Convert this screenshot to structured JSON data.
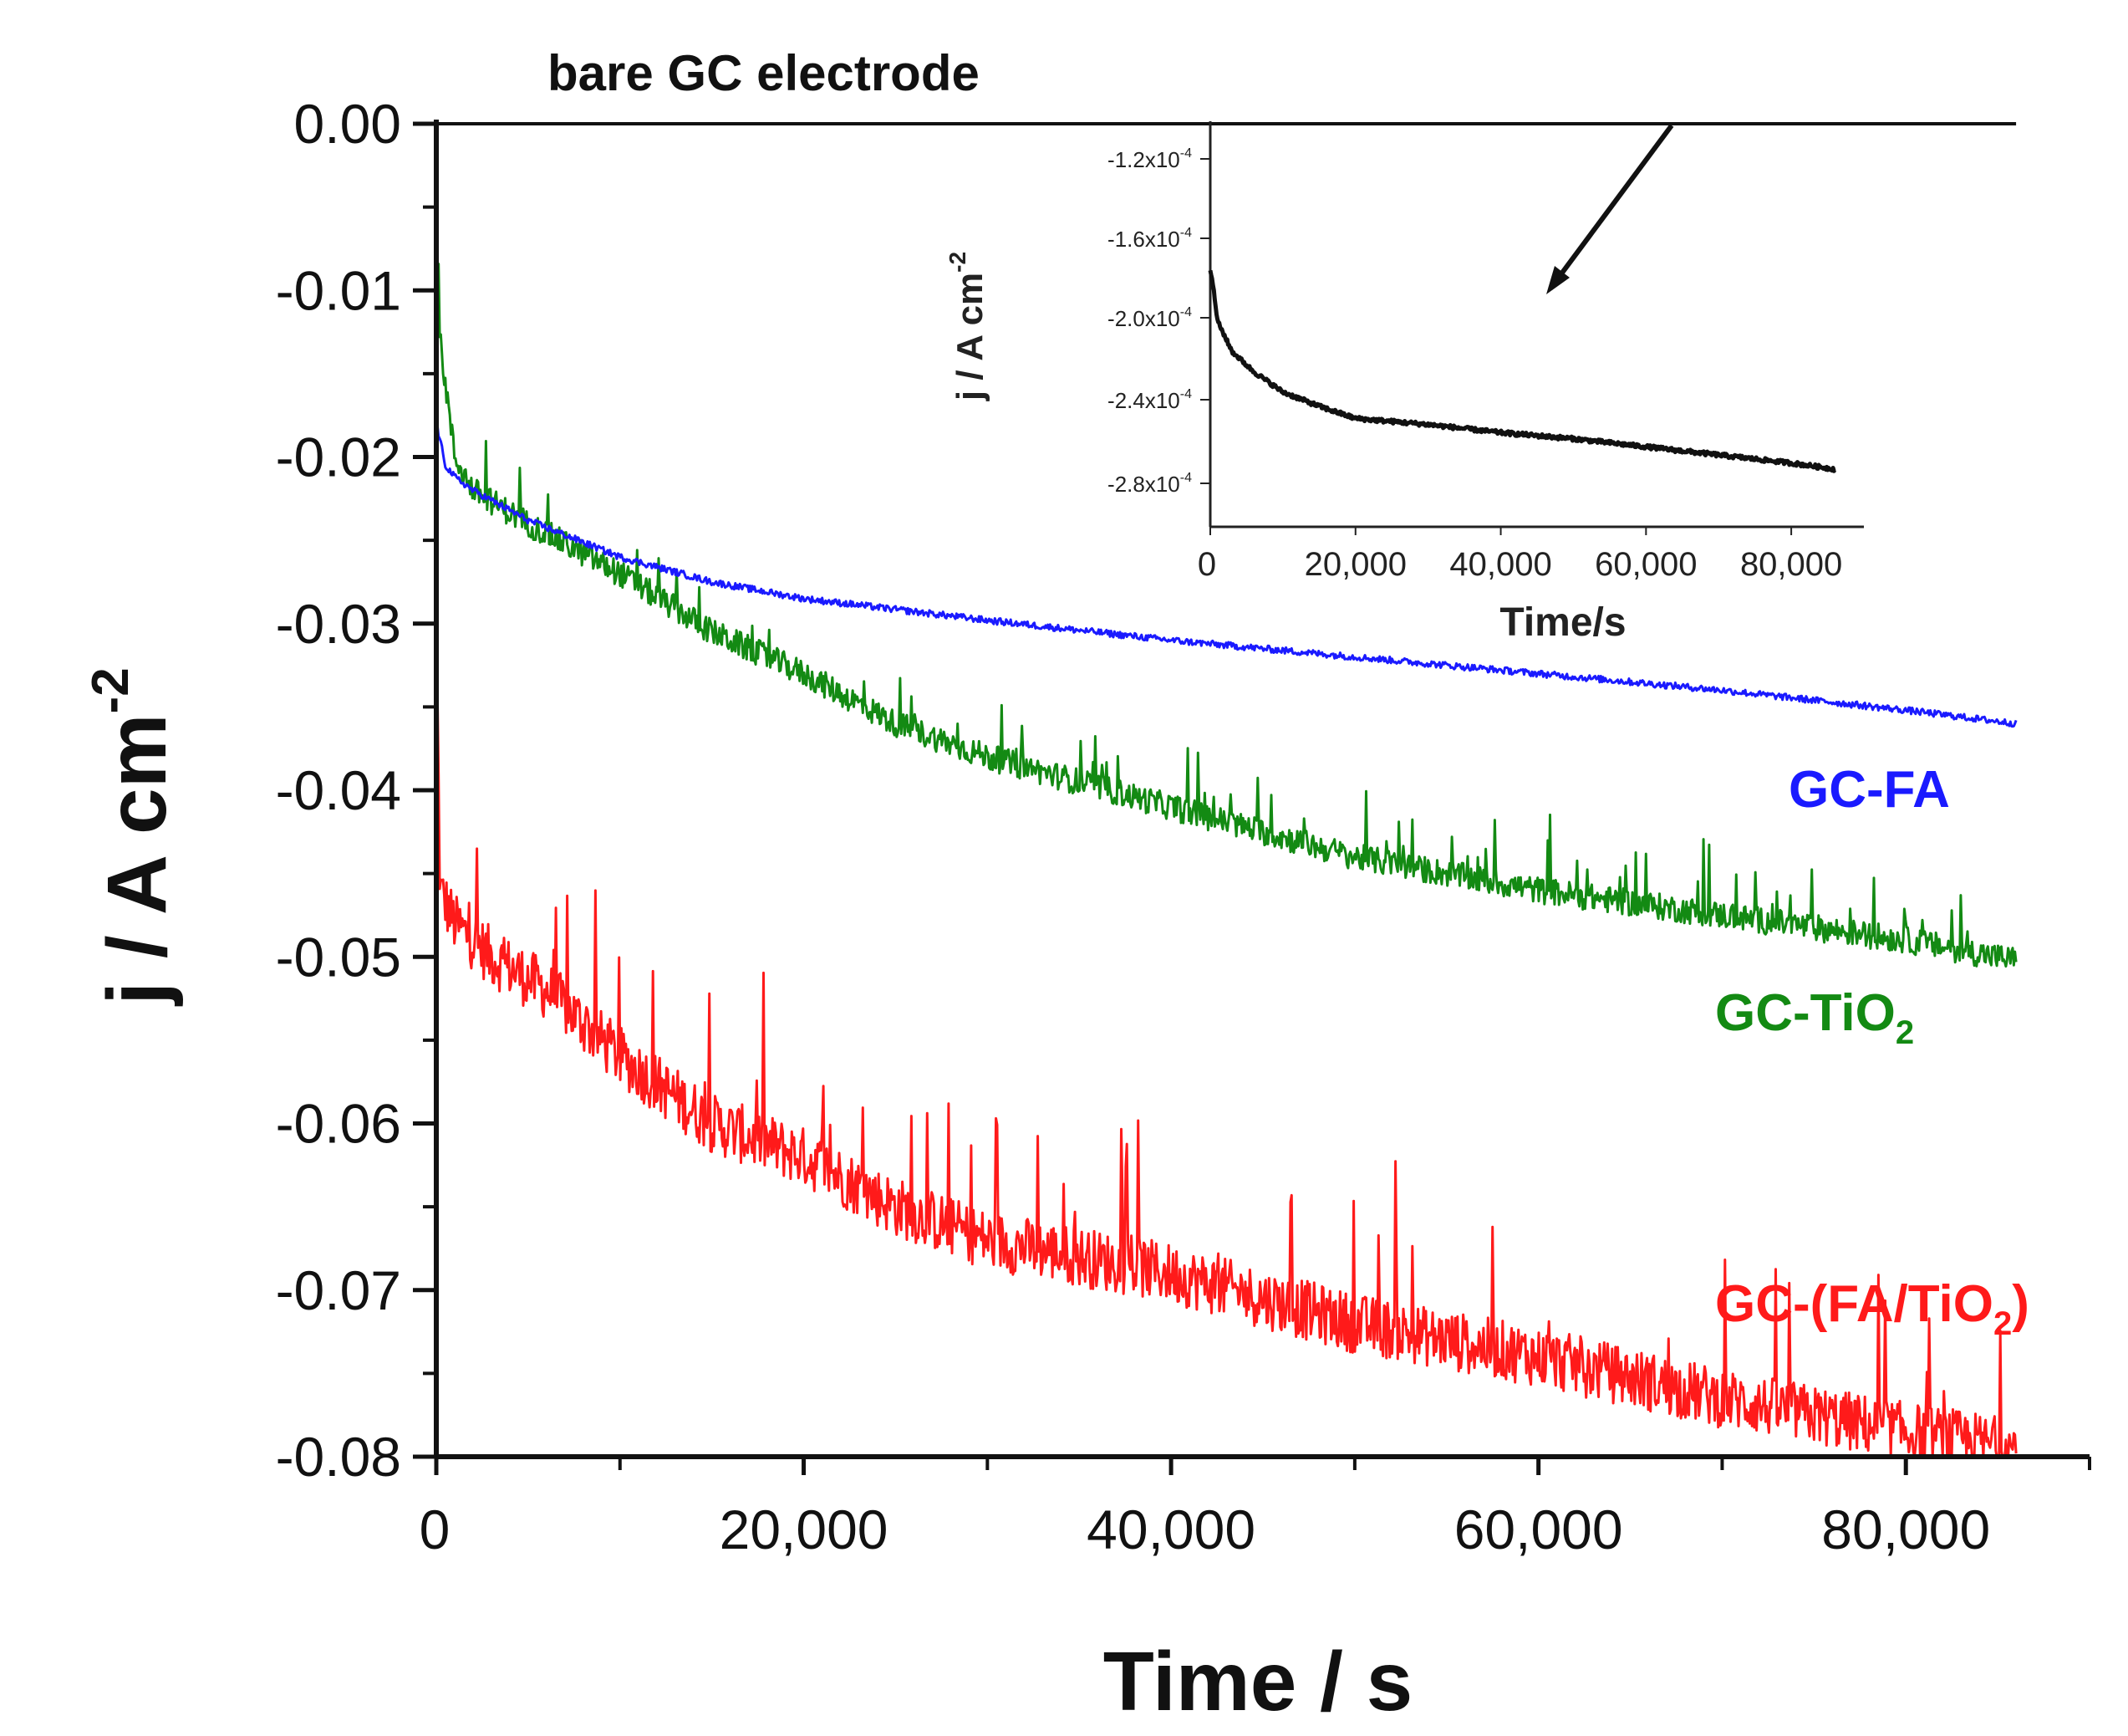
{
  "chart_data": {
    "type": "line",
    "title": "",
    "xlabel": "Time / s",
    "ylabel": "j / A cm",
    "ylabel_sup": "-2",
    "xlim": [
      0,
      90000
    ],
    "ylim": [
      -0.08,
      0.0
    ],
    "x_ticks": [
      0,
      20000,
      40000,
      60000,
      80000
    ],
    "x_tick_labels": [
      "0",
      "20,000",
      "40,000",
      "60,000",
      "80,000"
    ],
    "y_ticks": [
      0.0,
      -0.01,
      -0.02,
      -0.03,
      -0.04,
      -0.05,
      -0.06,
      -0.07,
      -0.08
    ],
    "y_tick_labels": [
      "0.00",
      "-0.01",
      "-0.02",
      "-0.03",
      "-0.04",
      "-0.05",
      "-0.06",
      "-0.07",
      "-0.08"
    ],
    "annotations": [
      {
        "text": "bare GC electrode",
        "x": 25000,
        "y": 0.003
      }
    ],
    "series": [
      {
        "name": "bare GC electrode",
        "color": "#111111",
        "noise": 0,
        "x": [
          0,
          86000
        ],
        "y": [
          0.0,
          0.0
        ]
      },
      {
        "name": "GC-FA",
        "label": "GC-FA",
        "label_sub": "",
        "label_close": "",
        "color": "#1a1aff",
        "noise": 0.0002,
        "x": [
          0,
          500,
          1000,
          2000,
          5000,
          10000,
          15000,
          20000,
          30000,
          40000,
          50000,
          60000,
          70000,
          80000,
          86000
        ],
        "y": [
          -0.018,
          -0.0205,
          -0.0212,
          -0.022,
          -0.0238,
          -0.026,
          -0.0275,
          -0.0285,
          -0.0298,
          -0.031,
          -0.032,
          -0.033,
          -0.034,
          -0.0352,
          -0.036
        ]
      },
      {
        "name": "GC-TiO2",
        "label": "GC-TiO",
        "label_sub": "2",
        "label_close": "",
        "color": "#138a13",
        "noise": 0.0008,
        "x": [
          0,
          200,
          1000,
          2000,
          5000,
          10000,
          15000,
          20000,
          25000,
          30000,
          35000,
          40000,
          50000,
          60000,
          70000,
          80000,
          86000
        ],
        "y": [
          -0.008,
          -0.013,
          -0.02,
          -0.022,
          -0.024,
          -0.027,
          -0.0305,
          -0.033,
          -0.036,
          -0.038,
          -0.0395,
          -0.041,
          -0.044,
          -0.046,
          -0.0475,
          -0.049,
          -0.0502
        ]
      },
      {
        "name": "GC-(FA/TiO2)",
        "label": "GC-(FA/TiO",
        "label_sub": "2",
        "label_close": ")",
        "color": "#ff1a1a",
        "noise": 0.0018,
        "x": [
          0,
          200,
          1000,
          3000,
          6000,
          10000,
          15000,
          20000,
          25000,
          30000,
          35000,
          40000,
          50000,
          60000,
          70000,
          80000,
          86000
        ],
        "y": [
          -0.03,
          -0.046,
          -0.048,
          -0.05,
          -0.052,
          -0.056,
          -0.06,
          -0.062,
          -0.065,
          -0.067,
          -0.068,
          -0.069,
          -0.072,
          -0.074,
          -0.0765,
          -0.0785,
          -0.0795
        ]
      }
    ],
    "inset": {
      "type": "line",
      "xlabel": "Time/s",
      "ylabel": "j / A cm",
      "ylabel_sup": "-2",
      "x_tick_labels": [
        "0",
        "20,000",
        "40,000",
        "60,000",
        "80,000"
      ],
      "y_tick_labels": [
        "-1.2x10",
        "-1.6x10",
        "-2.0x10",
        "-2.4x10",
        "-2.8x10"
      ],
      "y_tick_exp": "-4",
      "series": {
        "name": "bare GC electrode",
        "color": "#111111",
        "x": [
          0,
          300,
          1000,
          3000,
          6000,
          10000,
          15000,
          20000,
          30000,
          40000,
          50000,
          60000,
          70000,
          80000,
          86000
        ],
        "y": [
          -1.75,
          -1.8,
          -2.0,
          -2.15,
          -2.25,
          -2.35,
          -2.42,
          -2.48,
          -2.51,
          -2.55,
          -2.58,
          -2.62,
          -2.66,
          -2.7,
          -2.73
        ]
      }
    }
  }
}
